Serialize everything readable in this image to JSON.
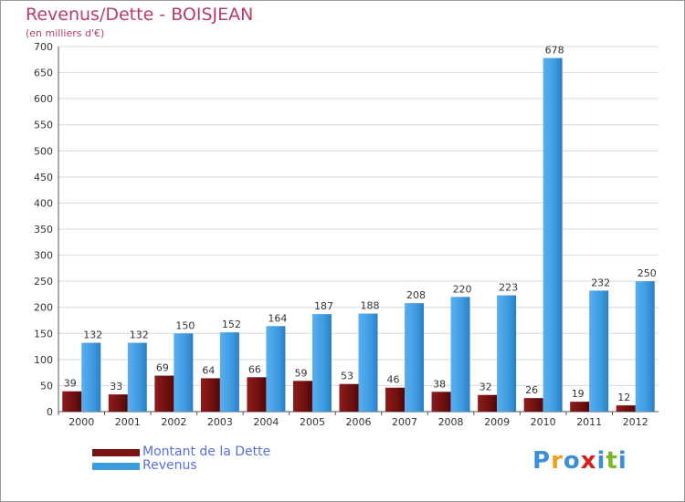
{
  "title": "Revenus/Dette - BOISJEAN",
  "subtitle": "(en milliers d'€)",
  "colors": {
    "debt": "#7a1414",
    "revenue": "#3d9be0",
    "title": "#b43c6e",
    "legend_text": "#5a6fd8"
  },
  "chart_data": {
    "type": "bar",
    "title": "Revenus/Dette - BOISJEAN",
    "ylabel": "(en milliers d'€)",
    "xlabel": "",
    "ylim": [
      0,
      700
    ],
    "yticks": [
      0,
      50,
      100,
      150,
      200,
      250,
      300,
      350,
      400,
      450,
      500,
      550,
      600,
      650,
      700
    ],
    "grid": true,
    "legend": "bottom-left",
    "categories": [
      "2000",
      "2001",
      "2002",
      "2003",
      "2004",
      "2005",
      "2006",
      "2007",
      "2008",
      "2009",
      "2010",
      "2011",
      "2012"
    ],
    "series": [
      {
        "name": "Montant de la Dette",
        "values": [
          39,
          33,
          69,
          64,
          66,
          59,
          53,
          46,
          38,
          32,
          26,
          19,
          12
        ]
      },
      {
        "name": "Revenus",
        "values": [
          132,
          132,
          150,
          152,
          164,
          187,
          188,
          208,
          220,
          223,
          678,
          232,
          250
        ]
      }
    ]
  },
  "legend": {
    "debt_label": "Montant de la Dette",
    "revenue_label": "Revenus"
  },
  "logo": {
    "text": "Proxiti",
    "letters": [
      "P",
      "r",
      "o",
      "x",
      "i",
      "t",
      "i"
    ],
    "letter_colors": [
      "#3a8fd9",
      "#f0a020",
      "#3a8fd9",
      "#d92020",
      "#3a8fd9",
      "#7ab82a",
      "#3a8fd9"
    ]
  }
}
